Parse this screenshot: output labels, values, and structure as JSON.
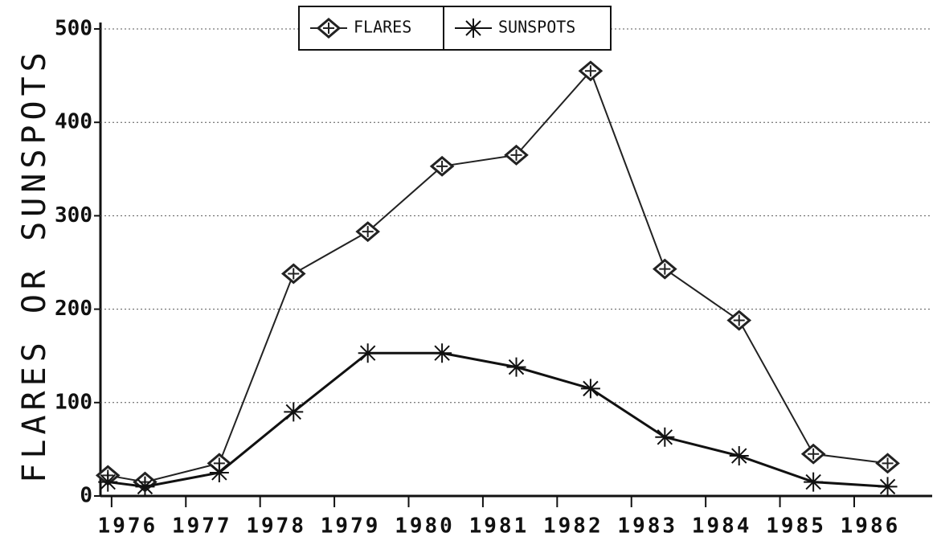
{
  "chart_data": {
    "type": "line",
    "y_label": "FLARES OR SUNSPOTS",
    "x": [
      1975.95,
      1976.45,
      1977.45,
      1978.45,
      1979.45,
      1980.45,
      1981.45,
      1982.45,
      1983.45,
      1984.45,
      1985.45,
      1986.45
    ],
    "series": [
      {
        "name": "FLARES",
        "color": "#222222",
        "marker": "diamond",
        "values": [
          22,
          15,
          35,
          238,
          283,
          353,
          365,
          455,
          243,
          188,
          45,
          35
        ]
      },
      {
        "name": "SUNSPOTS",
        "color": "#111111",
        "marker": "asterisk",
        "values": [
          15,
          10,
          25,
          90,
          153,
          153,
          138,
          115,
          63,
          43,
          15,
          10
        ]
      }
    ],
    "xlim": [
      1975.85,
      1987.05
    ],
    "xticks": [
      1976,
      1977,
      1978,
      1979,
      1980,
      1981,
      1982,
      1983,
      1984,
      1985,
      1986
    ],
    "ylim": [
      0,
      500
    ],
    "yticks": [
      0,
      100,
      200,
      300,
      400,
      500
    ],
    "grid": true,
    "legend": "top"
  }
}
